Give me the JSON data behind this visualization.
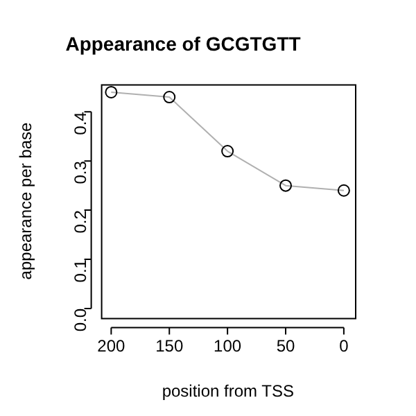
{
  "chart_data": {
    "type": "line",
    "title": "Appearance of GCGTGTT",
    "xlabel": "position from TSS",
    "ylabel": "appearance per base",
    "x": [
      200,
      150,
      100,
      50,
      0
    ],
    "series": [
      {
        "color": "#b0b0b0",
        "values": [
          0.44,
          0.43,
          0.32,
          0.25,
          0.24
        ]
      }
    ],
    "marker": "circle",
    "line_style": "solid",
    "xlim": [
      208.8,
      -9.6
    ],
    "xticks": [
      200,
      150,
      100,
      50,
      0
    ],
    "ylim": [
      -0.019,
      0.456
    ],
    "yticks": [
      {
        "value": 0,
        "label": "0.0"
      },
      0.1,
      0.2,
      0.3,
      0.4
    ],
    "grid": false,
    "legend": false
  }
}
